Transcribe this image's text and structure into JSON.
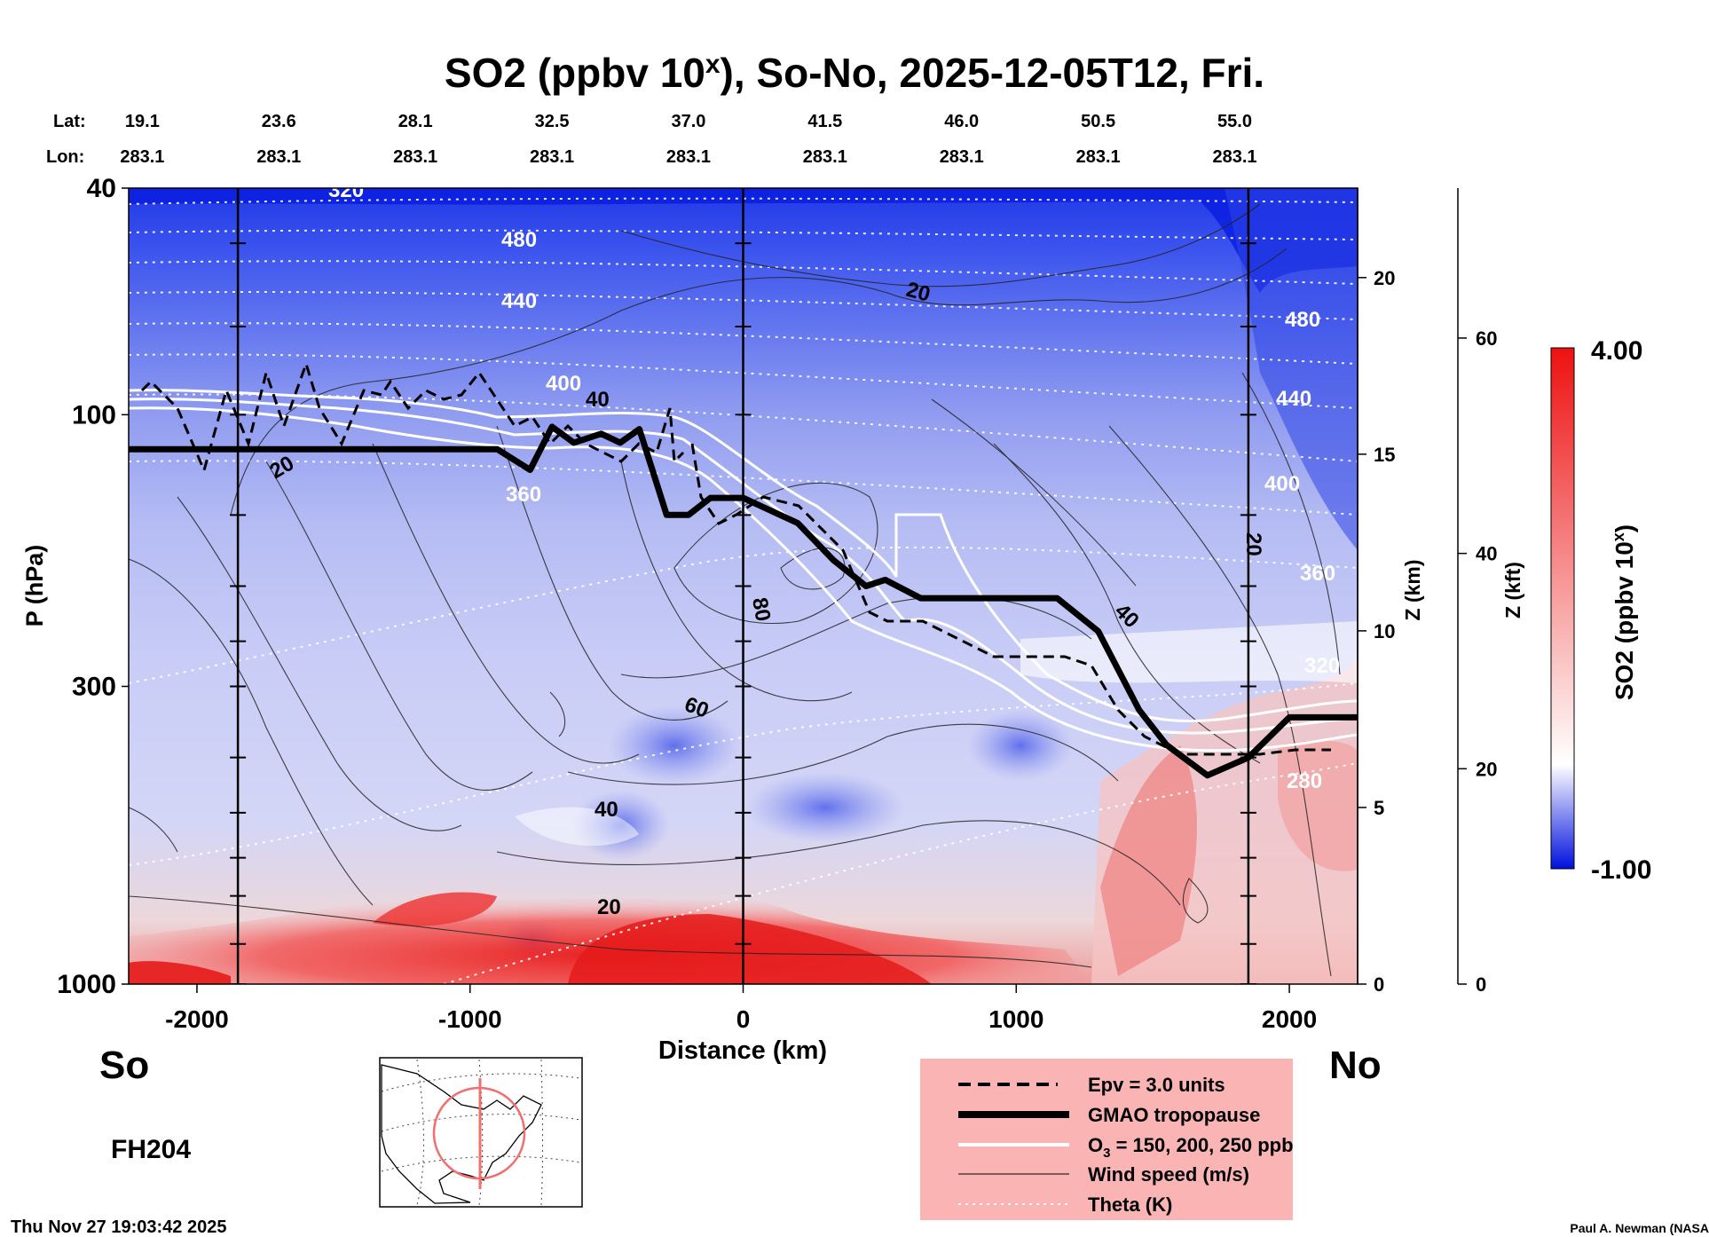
{
  "chart_data": {
    "type": "heatmap",
    "title_main": "SO2 (ppbv 10",
    "title_sup": "x",
    "title_rest": "), So-No, 2025-12-05T12, Fri.",
    "xlabel": "Distance (km)",
    "ylabel": "P (hPa)",
    "z_km_label": "Z (km)",
    "z_kft_label": "Z (kft)",
    "colorbar_label": "SO2 (ppbv 10",
    "colorbar_label_sup": "x",
    "colorbar_label_end": ")",
    "colorbar_max": 4.0,
    "colorbar_min": -1.0,
    "colorbar_max_label": "4.00",
    "colorbar_min_label": "-1.00",
    "xlim": [
      -2250,
      2250
    ],
    "x_ticks": [
      "-2000",
      "-1000",
      "0",
      "1000",
      "2000"
    ],
    "x_tick_values": [
      -2000,
      -1000,
      0,
      1000,
      2000
    ],
    "y_scale": "log",
    "ylim": [
      1000,
      40
    ],
    "y_ticks": [
      "40",
      "100",
      "300",
      "1000"
    ],
    "y_tick_values": [
      40,
      100,
      300,
      1000
    ],
    "z_km_ticks": [
      "0",
      "5",
      "10",
      "15",
      "20"
    ],
    "z_kft_ticks": [
      "0",
      "20",
      "40",
      "60"
    ],
    "lat_label": "Lat:",
    "lon_label": "Lon:",
    "lat_values": [
      "19.1",
      "23.6",
      "28.1",
      "32.5",
      "37.0",
      "41.5",
      "46.0",
      "50.5",
      "55.0"
    ],
    "lon_values": [
      "283.1",
      "283.1",
      "283.1",
      "283.1",
      "283.1",
      "283.1",
      "283.1",
      "283.1",
      "283.1"
    ],
    "vertical_lines_km": [
      -1850,
      0,
      1850
    ],
    "theta_labels": [
      "320",
      "480",
      "440",
      "400",
      "360",
      "480",
      "440",
      "400",
      "360",
      "320",
      "280"
    ],
    "wind_labels": [
      "20",
      "20",
      "40",
      "80",
      "60",
      "40",
      "20",
      "40",
      "20"
    ],
    "tropopause_hpa": [
      [
        -2250,
        115
      ],
      [
        -900,
        115
      ],
      [
        -780,
        125
      ],
      [
        -700,
        105
      ],
      [
        -620,
        112
      ],
      [
        -520,
        108
      ],
      [
        -450,
        112
      ],
      [
        -380,
        106
      ],
      [
        -330,
        126
      ],
      [
        -280,
        150
      ],
      [
        -200,
        150
      ],
      [
        -120,
        140
      ],
      [
        0,
        140
      ],
      [
        200,
        155
      ],
      [
        330,
        180
      ],
      [
        450,
        200
      ],
      [
        520,
        195
      ],
      [
        650,
        210
      ],
      [
        900,
        210
      ],
      [
        1150,
        210
      ],
      [
        1300,
        240
      ],
      [
        1450,
        330
      ],
      [
        1550,
        380
      ],
      [
        1700,
        430
      ],
      [
        1850,
        400
      ],
      [
        2000,
        340
      ],
      [
        2250,
        340
      ]
    ],
    "legend": {
      "epv": "Epv = 3.0 units",
      "tropopause": "GMAO tropopause",
      "ozone": "O",
      "ozone_sub": "3",
      "ozone_rest": " = 150, 200, 250 ppb",
      "wind": "Wind speed (m/s)",
      "theta": "Theta (K)"
    },
    "left_end": "So",
    "right_end": "No",
    "forecast_hour": "FH204",
    "timestamp": "Thu Nov 27 19:03:42 2025",
    "credit": "Paul A. Newman (NASA"
  },
  "colors": {
    "high": "#ee1111",
    "mid": "#ffffff",
    "low": "#0010dd",
    "legend_bg": "#fbb4b4"
  }
}
